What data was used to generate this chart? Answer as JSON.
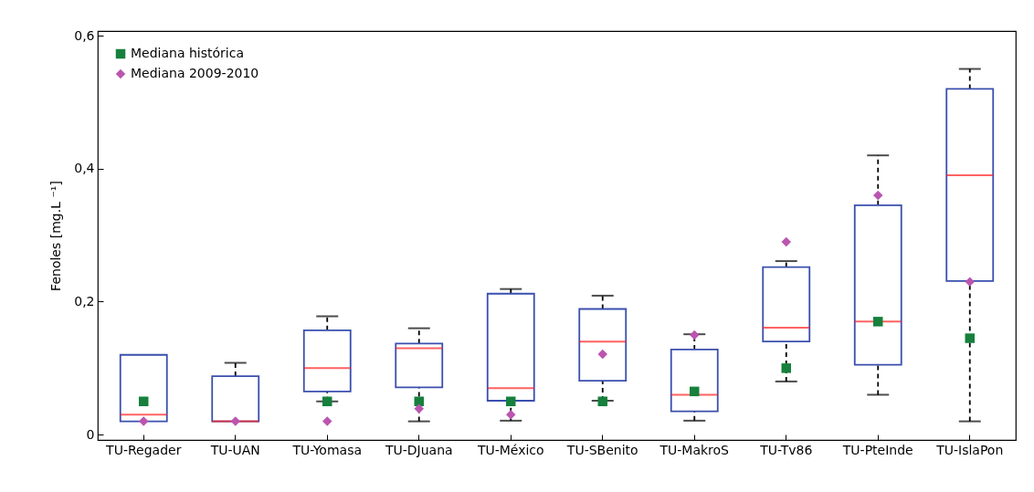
{
  "chart_data": {
    "type": "box",
    "ylabel": "Fenoles [mg.L ⁻¹]",
    "categories": [
      "TU-Regader",
      "TU-UAN",
      "TU-Yomasa",
      "TU-DJuana",
      "TU-México",
      "TU-SBenito",
      "TU-MakroS",
      "TU-Tv86",
      "TU-PteInde",
      "TU-IslaPon"
    ],
    "boxes": [
      {
        "low": 0.02,
        "q1": 0.02,
        "median": 0.03,
        "q3": 0.12,
        "high": 0.12
      },
      {
        "low": 0.02,
        "q1": 0.02,
        "median": 0.02,
        "q3": 0.088,
        "high": 0.108
      },
      {
        "low": 0.05,
        "q1": 0.065,
        "median": 0.1,
        "q3": 0.157,
        "high": 0.178
      },
      {
        "low": 0.02,
        "q1": 0.071,
        "median": 0.13,
        "q3": 0.137,
        "high": 0.16
      },
      {
        "low": 0.021,
        "q1": 0.051,
        "median": 0.07,
        "q3": 0.212,
        "high": 0.219
      },
      {
        "low": 0.051,
        "q1": 0.081,
        "median": 0.14,
        "q3": 0.189,
        "high": 0.209
      },
      {
        "low": 0.021,
        "q1": 0.035,
        "median": 0.06,
        "q3": 0.128,
        "high": 0.151
      },
      {
        "low": 0.08,
        "q1": 0.14,
        "median": 0.161,
        "q3": 0.252,
        "high": 0.261
      },
      {
        "low": 0.06,
        "q1": 0.105,
        "median": 0.17,
        "q3": 0.345,
        "high": 0.42
      },
      {
        "low": 0.02,
        "q1": 0.231,
        "median": 0.39,
        "q3": 0.52,
        "high": 0.55
      }
    ],
    "series": [
      {
        "name": "Mediana histórica",
        "type": "scatter",
        "marker": "square",
        "color": "#16803c",
        "x": [
          "TU-Regader",
          "TU-UAN",
          "TU-Yomasa",
          "TU-DJuana",
          "TU-México",
          "TU-SBenito",
          "TU-MakroS",
          "TU-Tv86",
          "TU-PteInde",
          "TU-IslaPon"
        ],
        "values": [
          0.05,
          null,
          0.05,
          0.05,
          0.05,
          0.05,
          0.065,
          0.1,
          0.17,
          0.145
        ]
      },
      {
        "name": "Mediana 2009-2010",
        "type": "scatter",
        "marker": "diamond",
        "color": "#bb55b0",
        "x": [
          "TU-Regader",
          "TU-UAN",
          "TU-Yomasa",
          "TU-DJuana",
          "TU-México",
          "TU-SBenito",
          "TU-MakroS",
          "TU-Tv86",
          "TU-PteInde",
          "TU-IslaPon"
        ],
        "values": [
          0.02,
          0.02,
          0.02,
          0.039,
          0.03,
          0.121,
          0.15,
          0.29,
          0.36,
          0.23
        ]
      }
    ],
    "ylim": [
      -0.008,
      0.607
    ],
    "yticks": [
      {
        "value": 0,
        "label": "0"
      },
      {
        "value": 0.2,
        "label": "0,2"
      },
      {
        "value": 0.4,
        "label": "0,4"
      },
      {
        "value": 0.6,
        "label": "0,6"
      }
    ],
    "grid": false,
    "legend": "top left"
  }
}
